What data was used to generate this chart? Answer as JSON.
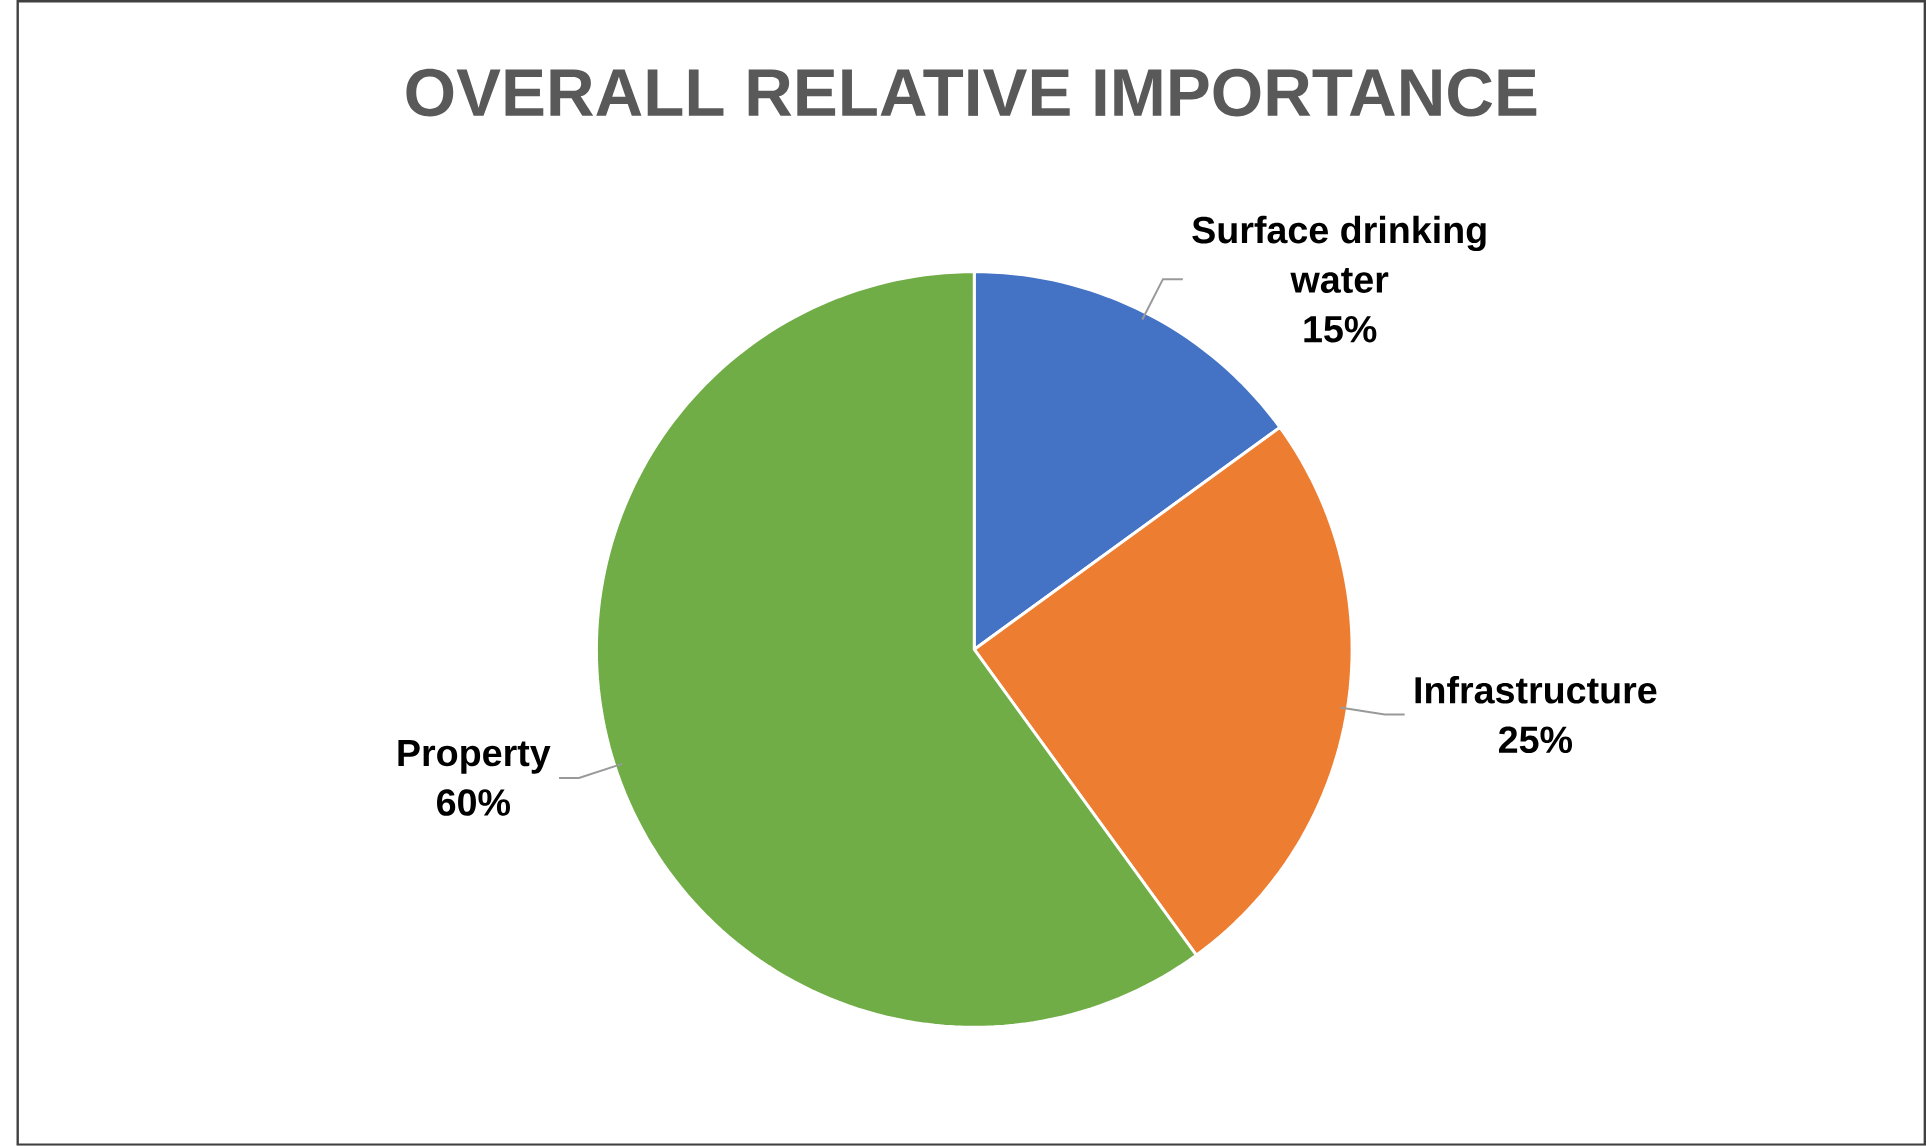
{
  "chart_data": {
    "type": "pie",
    "title": "OVERALL RELATIVE IMPORTANCE",
    "categories": [
      "Surface drinking water",
      "Infrastructure",
      "Property"
    ],
    "values": [
      15,
      25,
      60
    ],
    "colors": [
      "#4472c4",
      "#ed7d31",
      "#70ad47"
    ],
    "value_labels": [
      "15%",
      "25%",
      "60%"
    ],
    "legend": false
  }
}
